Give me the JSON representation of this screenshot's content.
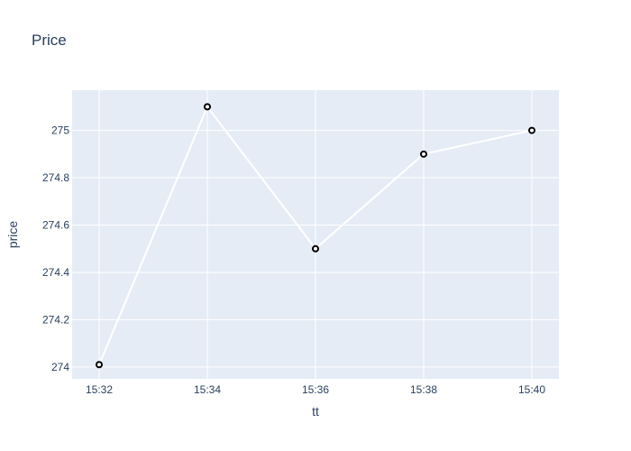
{
  "chart_data": {
    "type": "line",
    "title": "Price",
    "xlabel": "tt",
    "ylabel": "price",
    "x": [
      "15:32",
      "15:34",
      "15:36",
      "15:38",
      "15:40"
    ],
    "series": [
      {
        "values": [
          274.01,
          275.1,
          274.5,
          274.9,
          275.0
        ]
      }
    ],
    "xticks": [
      "15:32",
      "15:34",
      "15:36",
      "15:38",
      "15:40"
    ],
    "yticks": [
      "274",
      "274.2",
      "274.4",
      "274.6",
      "274.8",
      "275"
    ],
    "ylim": [
      273.95,
      275.17
    ],
    "grid": true,
    "legend": "none",
    "colors": {
      "plot_bg": "#e5ecf6",
      "grid": "#ffffff",
      "line": "#ffffff",
      "marker_fill": "#ffffff",
      "marker_stroke": "#000000",
      "text": "#2a3f5f"
    }
  }
}
